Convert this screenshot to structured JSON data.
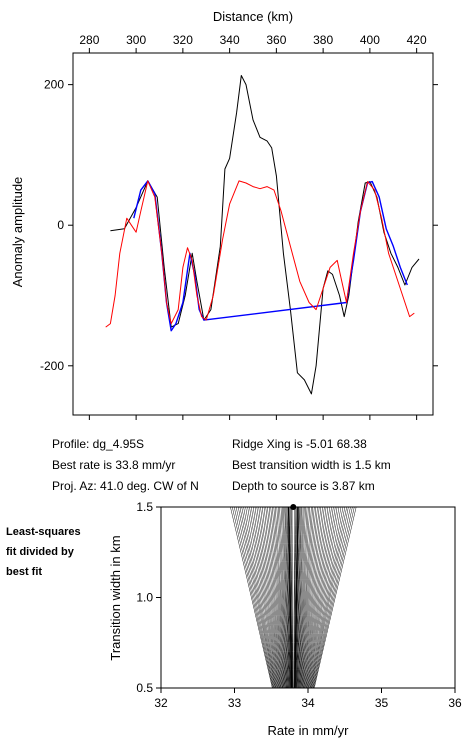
{
  "chart_data": [
    {
      "type": "line",
      "xlabel": "Distance (km)",
      "ylabel": "Anomaly amplitude",
      "xlim": [
        273,
        427
      ],
      "ylim": [
        -270,
        245
      ],
      "x_ticks": [
        280,
        300,
        320,
        340,
        360,
        380,
        400,
        420
      ],
      "y_ticks": [
        200,
        0,
        -200
      ],
      "x_axis_position": "top",
      "grid": false,
      "series": [
        {
          "color": "#000000",
          "points": [
            [
              289,
              -8
            ],
            [
              295,
              -5
            ],
            [
              300,
              25
            ],
            [
              305,
              63
            ],
            [
              309,
              40
            ],
            [
              312,
              -60
            ],
            [
              315,
              -145
            ],
            [
              318,
              -140
            ],
            [
              321,
              -100
            ],
            [
              324,
              -40
            ],
            [
              326,
              -80
            ],
            [
              329,
              -135
            ],
            [
              332,
              -120
            ],
            [
              336,
              -30
            ],
            [
              338,
              80
            ],
            [
              340,
              95
            ],
            [
              343,
              160
            ],
            [
              345,
              213
            ],
            [
              347,
              200
            ],
            [
              350,
              150
            ],
            [
              353,
              125
            ],
            [
              356,
              120
            ],
            [
              358,
              110
            ],
            [
              360,
              70
            ],
            [
              363,
              -40
            ],
            [
              366,
              -120
            ],
            [
              369,
              -210
            ],
            [
              372,
              -220
            ],
            [
              375,
              -240
            ],
            [
              377,
              -200
            ],
            [
              380,
              -90
            ],
            [
              382,
              -65
            ],
            [
              384,
              -70
            ],
            [
              387,
              -100
            ],
            [
              389,
              -130
            ],
            [
              391,
              -100
            ],
            [
              395,
              5
            ],
            [
              398,
              60
            ],
            [
              400,
              62
            ],
            [
              403,
              40
            ],
            [
              406,
              -10
            ],
            [
              409,
              -40
            ],
            [
              412,
              -60
            ],
            [
              415,
              -85
            ],
            [
              418,
              -60
            ],
            [
              421,
              -48
            ]
          ]
        },
        {
          "color": "#0000ff",
          "points": [
            [
              299,
              10
            ],
            [
              302,
              50
            ],
            [
              305,
              63
            ],
            [
              308,
              45
            ],
            [
              311,
              -40
            ],
            [
              313,
              -110
            ],
            [
              315,
              -150
            ],
            [
              317,
              -140
            ],
            [
              320,
              -110
            ],
            [
              323,
              -40
            ],
            [
              325,
              -70
            ],
            [
              327,
              -120
            ],
            [
              329,
              -135
            ],
            [
              390,
              -110
            ],
            [
              393,
              -50
            ],
            [
              396,
              20
            ],
            [
              399,
              60
            ],
            [
              401,
              62
            ],
            [
              404,
              40
            ],
            [
              407,
              -5
            ],
            [
              410,
              -30
            ],
            [
              413,
              -60
            ],
            [
              416,
              -85
            ]
          ]
        },
        {
          "color": "#ff0000",
          "points": [
            [
              287,
              -145
            ],
            [
              289,
              -140
            ],
            [
              291,
              -100
            ],
            [
              293,
              -40
            ],
            [
              296,
              10
            ],
            [
              298,
              0
            ],
            [
              300,
              -10
            ],
            [
              302,
              20
            ],
            [
              305,
              63
            ],
            [
              308,
              40
            ],
            [
              311,
              -40
            ],
            [
              313,
              -110
            ],
            [
              315,
              -140
            ],
            [
              318,
              -120
            ],
            [
              320,
              -60
            ],
            [
              322,
              -32
            ],
            [
              324,
              -50
            ],
            [
              326,
              -100
            ],
            [
              328,
              -130
            ],
            [
              330,
              -135
            ],
            [
              333,
              -100
            ],
            [
              337,
              -20
            ],
            [
              340,
              30
            ],
            [
              344,
              63
            ],
            [
              347,
              60
            ],
            [
              350,
              55
            ],
            [
              353,
              52
            ],
            [
              356,
              55
            ],
            [
              359,
              50
            ],
            [
              362,
              20
            ],
            [
              366,
              -30
            ],
            [
              370,
              -80
            ],
            [
              374,
              -110
            ],
            [
              377,
              -120
            ],
            [
              380,
              -90
            ],
            [
              383,
              -60
            ],
            [
              386,
              -50
            ],
            [
              388,
              -80
            ],
            [
              390,
              -110
            ],
            [
              393,
              -40
            ],
            [
              396,
              20
            ],
            [
              399,
              62
            ],
            [
              402,
              50
            ],
            [
              405,
              10
            ],
            [
              408,
              -40
            ],
            [
              411,
              -70
            ],
            [
              414,
              -100
            ],
            [
              417,
              -130
            ],
            [
              419,
              -125
            ]
          ]
        }
      ]
    },
    {
      "type": "contour",
      "xlabel": "Rate in mm/yr",
      "ylabel": "Transition width in km",
      "xlim": [
        32,
        36
      ],
      "ylim": [
        0.5,
        1.5
      ],
      "x_ticks": [
        32,
        33,
        34,
        35,
        36
      ],
      "y_ticks": [
        0.5,
        1.0,
        1.5
      ],
      "best_fit_marker": {
        "rate": 33.8,
        "width": 1.5
      },
      "center_rate": 33.8,
      "width_coefficient": 0.25,
      "contour_levels": [
        1.002,
        1.006,
        1.012,
        1.02,
        1.03,
        1.045,
        1.06,
        1.08,
        1.1,
        1.13,
        1.16,
        1.2,
        1.25,
        1.3,
        1.36,
        1.43,
        1.5,
        1.58,
        1.67,
        1.77,
        1.88,
        2.0,
        2.13,
        2.27,
        2.42,
        2.58,
        2.75,
        2.93,
        3.12,
        3.32,
        3.53,
        3.75,
        4.0,
        4.25,
        4.5,
        4.75,
        5.0,
        5.3,
        5.6,
        5.9,
        6.2
      ],
      "bold_levels": [
        1.03,
        1.45
      ]
    }
  ],
  "info": {
    "profile": "Profile: dg_4.95S",
    "best_rate": "Best rate is 33.8 mm/yr",
    "proj_az": "Proj. Az: 41.0 deg. CW of N",
    "ridge_xing": "Ridge Xing is -5.01 68.38",
    "best_transition": "Best transition width is 1.5 km",
    "depth": "Depth to source is   3.87 km"
  },
  "side_note": [
    "Least-squares",
    "fit divided by",
    "best fit"
  ]
}
